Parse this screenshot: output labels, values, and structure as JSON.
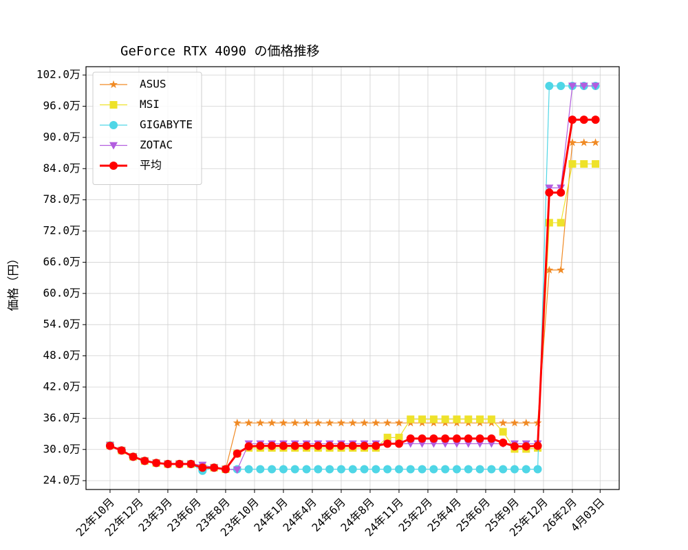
{
  "chart_data": {
    "type": "line",
    "title": "GeForce RTX 4090 の価格推移",
    "ylabel": "価格（円）",
    "x": [
      0,
      1,
      2,
      3,
      4,
      5,
      6,
      7,
      8,
      9,
      10,
      11,
      12,
      13,
      14,
      15,
      16,
      17,
      18,
      19,
      20,
      21,
      22,
      23,
      24,
      25,
      26,
      27,
      28,
      29,
      30,
      31,
      32,
      33,
      34,
      35,
      36,
      37,
      38,
      39,
      40,
      41,
      42
    ],
    "xlim": [
      -2.08,
      44.05
    ],
    "xticks": [
      {
        "value": 0,
        "label": "22年10月"
      },
      {
        "value": 2.5,
        "label": "22年12月"
      },
      {
        "value": 5,
        "label": "23年3月"
      },
      {
        "value": 7.5,
        "label": "23年6月"
      },
      {
        "value": 10,
        "label": "23年8月"
      },
      {
        "value": 12.5,
        "label": "23年10月"
      },
      {
        "value": 15,
        "label": "24年1月"
      },
      {
        "value": 17.5,
        "label": "24年4月"
      },
      {
        "value": 20,
        "label": "24年6月"
      },
      {
        "value": 22.5,
        "label": "24年8月"
      },
      {
        "value": 25,
        "label": "24年11月"
      },
      {
        "value": 27.5,
        "label": "25年2月"
      },
      {
        "value": 30,
        "label": "25年4月"
      },
      {
        "value": 32.5,
        "label": "25年6月"
      },
      {
        "value": 35,
        "label": "25年9月"
      },
      {
        "value": 37.5,
        "label": "25年12月"
      },
      {
        "value": 40,
        "label": "26年2月"
      },
      {
        "value": 42.4,
        "label": "4月03日"
      }
    ],
    "ylim": [
      22.3,
      103.6
    ],
    "yticks": [
      {
        "value": 24,
        "label": "24.0万"
      },
      {
        "value": 30,
        "label": "30.0万"
      },
      {
        "value": 36,
        "label": "36.0万"
      },
      {
        "value": 42,
        "label": "42.0万"
      },
      {
        "value": 48,
        "label": "48.0万"
      },
      {
        "value": 54,
        "label": "54.0万"
      },
      {
        "value": 60,
        "label": "60.0万"
      },
      {
        "value": 66,
        "label": "66.0万"
      },
      {
        "value": 72,
        "label": "72.0万"
      },
      {
        "value": 78,
        "label": "78.0万"
      },
      {
        "value": 84,
        "label": "84.0万"
      },
      {
        "value": 90,
        "label": "90.0万"
      },
      {
        "value": 96,
        "label": "96.0万"
      },
      {
        "value": 102,
        "label": "102.0万"
      }
    ],
    "grid": true,
    "legend": "upper left",
    "series": [
      {
        "name": "ASUS",
        "color": "#f08a24",
        "marker": "star",
        "width": 1.2,
        "values": [
          30.8,
          29.8,
          28.6,
          27.8,
          27.4,
          27.2,
          27.2,
          27.2,
          26.5,
          26.5,
          26.2,
          35.1,
          35.1,
          35.1,
          35.1,
          35.1,
          35.1,
          35.1,
          35.1,
          35.1,
          35.1,
          35.1,
          35.1,
          35.1,
          35.1,
          35.1,
          35.1,
          35.1,
          35.1,
          35.1,
          35.1,
          35.1,
          35.1,
          35.1,
          35.1,
          35.1,
          35.1,
          35.1,
          64.5,
          64.5,
          89,
          89,
          89
        ]
      },
      {
        "name": "MSI",
        "color": "#eee22a",
        "marker": "square",
        "width": 1.2,
        "values": [
          30.8,
          29.8,
          28.6,
          27.8,
          27.4,
          27.2,
          27.2,
          27.2,
          26.5,
          26.5,
          26.2,
          29.2,
          30.3,
          30.3,
          30.3,
          30.3,
          30.3,
          30.3,
          30.3,
          30.3,
          30.3,
          30.3,
          30.3,
          30.3,
          32.3,
          32.3,
          35.8,
          35.8,
          35.8,
          35.8,
          35.8,
          35.8,
          35.8,
          35.8,
          33.4,
          30.1,
          30.1,
          30.3,
          73.6,
          73.6,
          84.9,
          84.9,
          84.9
        ]
      },
      {
        "name": "GIGABYTE",
        "color": "#4fd6e6",
        "marker": "circle",
        "width": 1.2,
        "values": [
          30.8,
          29.8,
          28.6,
          27.8,
          27.4,
          27.2,
          27.2,
          27.2,
          25.9,
          26.5,
          26.2,
          26.2,
          26.2,
          26.2,
          26.2,
          26.2,
          26.2,
          26.2,
          26.2,
          26.2,
          26.2,
          26.2,
          26.2,
          26.2,
          26.2,
          26.2,
          26.2,
          26.2,
          26.2,
          26.2,
          26.2,
          26.2,
          26.2,
          26.2,
          26.2,
          26.2,
          26.2,
          26.2,
          99.9,
          99.9,
          99.9,
          99.9,
          99.9
        ]
      },
      {
        "name": "ZOTAC",
        "color": "#b25ddf",
        "marker": "triangle-down",
        "width": 1.2,
        "values": [
          30.8,
          29.8,
          28.6,
          27.8,
          27.4,
          27.2,
          27.2,
          27.2,
          27.0,
          26.5,
          26.2,
          26.1,
          31.1,
          31.1,
          31.1,
          31.1,
          31.1,
          31.1,
          31.1,
          31.1,
          31.1,
          31.1,
          31.1,
          31.1,
          31.1,
          31.1,
          31.1,
          31.1,
          31.1,
          31.1,
          31.1,
          31.1,
          31.1,
          31.1,
          31.1,
          31.1,
          31.1,
          31.1,
          80.3,
          80.3,
          99.9,
          99.9,
          99.9
        ]
      },
      {
        "name": "平均",
        "color": "#ff0000",
        "marker": "circle",
        "width": 3,
        "values": [
          30.7,
          29.8,
          28.6,
          27.8,
          27.4,
          27.2,
          27.2,
          27.2,
          26.5,
          26.5,
          26.2,
          29.2,
          30.6,
          30.7,
          30.7,
          30.7,
          30.7,
          30.7,
          30.7,
          30.7,
          30.7,
          30.7,
          30.7,
          30.7,
          31.1,
          31.1,
          32.1,
          32.1,
          32.1,
          32.1,
          32.1,
          32.1,
          32.1,
          32.1,
          31.3,
          30.6,
          30.6,
          30.7,
          79.4,
          79.4,
          93.4,
          93.4,
          93.4
        ]
      }
    ]
  }
}
